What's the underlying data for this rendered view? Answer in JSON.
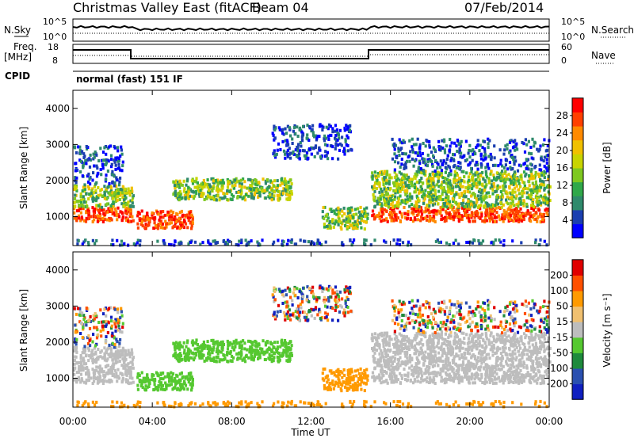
{
  "header": {
    "title": "Christmas Valley East (fitACF)",
    "beam": "Beam 04",
    "date": "07/Feb/2014"
  },
  "panels": {
    "nsky_label": "N.Sky",
    "nsearch_label": "N.Search",
    "nsky_ticks": [
      "10^5",
      "10^0"
    ],
    "nsearch_ticks": [
      "10^5",
      "10^0"
    ],
    "freq_label": "Freq.",
    "freq_unit": "[MHz]",
    "freq_ticks": [
      "18",
      "8"
    ],
    "nave_label": "Nave",
    "nave_ticks": [
      "60",
      "0"
    ],
    "cpid_label": "CPID",
    "cpid_text": "normal (fast) 151 IF"
  },
  "chart_data": [
    {
      "type": "heatmap",
      "title": "",
      "ylabel": "Slant Range [km]",
      "xlabel": "",
      "ylim": [
        200,
        4500
      ],
      "yticks": [
        "1000",
        "2000",
        "3000",
        "4000"
      ],
      "colorbar_label": "Power [dB]",
      "colorbar_ticks": [
        "28",
        "24",
        "20",
        "16",
        "12",
        "8",
        "4"
      ],
      "colorbar_colors": [
        "#0000ff",
        "#1b3fb0",
        "#2f8a6c",
        "#30a84a",
        "#7ec820",
        "#c8d400",
        "#f0c000",
        "#ff8a00",
        "#ff4000",
        "#ff0000"
      ]
    },
    {
      "type": "heatmap",
      "title": "",
      "ylabel": "Slant Range [km]",
      "xlabel": "Time UT",
      "ylim": [
        200,
        4500
      ],
      "yticks": [
        "1000",
        "2000",
        "3000",
        "4000"
      ],
      "xticks": [
        "00:00",
        "04:00",
        "08:00",
        "12:00",
        "16:00",
        "20:00",
        "00:00"
      ],
      "xlim_hours": [
        0,
        24
      ],
      "colorbar_label": "Velocity [m s⁻¹]",
      "colorbar_ticks": [
        "200",
        "100",
        "50",
        "15",
        "-15",
        "-50",
        "-100",
        "-200"
      ],
      "colorbar_colors": [
        "#1020c0",
        "#2a50b0",
        "#1e8a3c",
        "#55c830",
        "#bdbdbd",
        "#f0c070",
        "#ff9a00",
        "#ff5000",
        "#e00000"
      ]
    }
  ]
}
